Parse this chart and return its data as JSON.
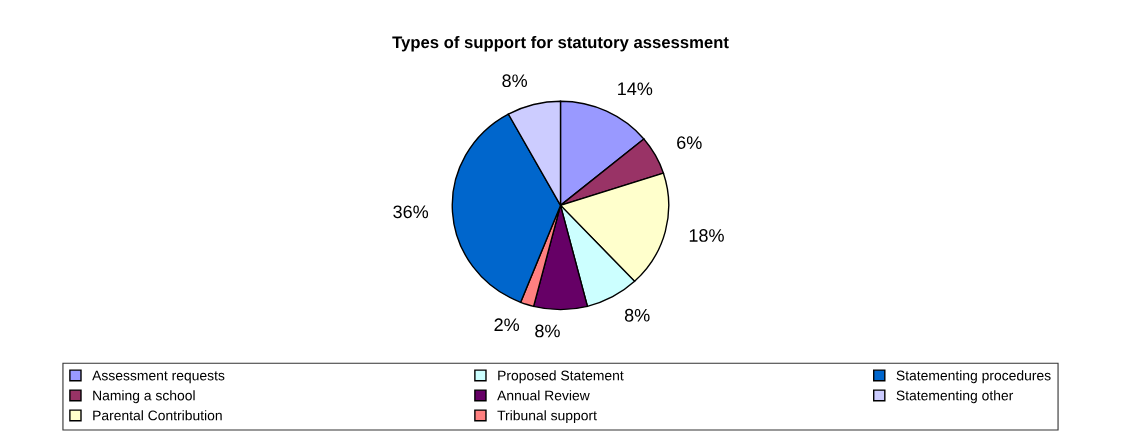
{
  "chart_data": {
    "type": "pie",
    "title": "Types of support for statutory assessment",
    "categories": [
      "Assessment requests",
      "Naming a school",
      "Parental Contribution",
      "Proposed Statement",
      "Annual Review",
      "Tribunal support",
      "Statementing procedures",
      "Statementing other"
    ],
    "values": [
      14,
      6,
      18,
      8,
      8,
      2,
      36,
      8
    ],
    "value_labels": [
      "14%",
      "6%",
      "18%",
      "8%",
      "8%",
      "2%",
      "36%",
      "8%"
    ],
    "colors": [
      "#9999ff",
      "#993366",
      "#ffffcc",
      "#ccffff",
      "#660066",
      "#ff8080",
      "#0066cc",
      "#ccccff"
    ],
    "legend": "bottom"
  }
}
